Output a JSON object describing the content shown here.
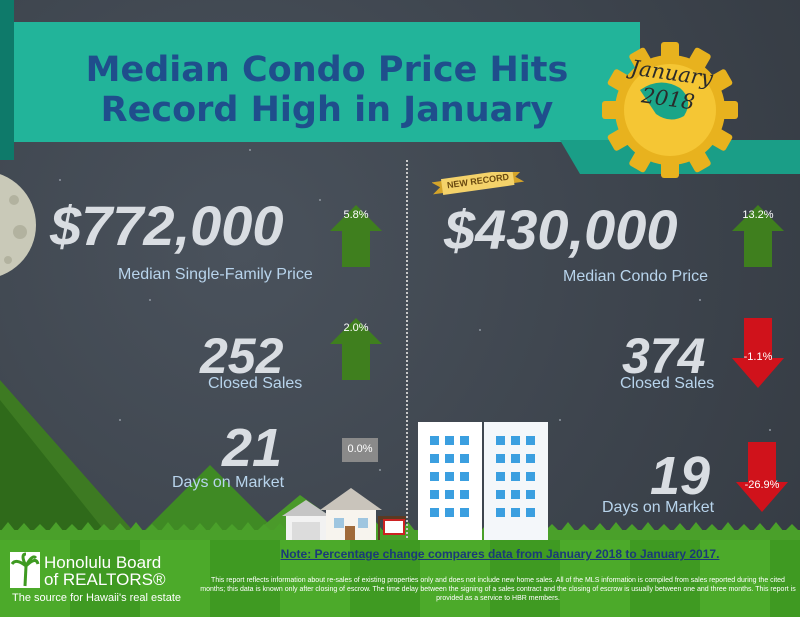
{
  "header": {
    "title_line1": "Median Condo Price Hits",
    "title_line2": "Record High in January",
    "seal_month": "January",
    "seal_year": "2018"
  },
  "badge": {
    "label": "NEW RECORD"
  },
  "single_family": {
    "price": {
      "value": "$772,000",
      "label": "Median Single-Family Price",
      "change": "5.8%",
      "direction": "up"
    },
    "closed_sales": {
      "value": "252",
      "label": "Closed Sales",
      "change": "2.0%",
      "direction": "up"
    },
    "days_on_market": {
      "value": "21",
      "label": "Days on Market",
      "change": "0.0%",
      "direction": "flat"
    }
  },
  "condo": {
    "price": {
      "value": "$430,000",
      "label": "Median Condo Price",
      "change": "13.2%",
      "direction": "up"
    },
    "closed_sales": {
      "value": "374",
      "label": "Closed Sales",
      "change": "-1.1%",
      "direction": "down"
    },
    "days_on_market": {
      "value": "19",
      "label": "Days on Market",
      "change": "-26.9%",
      "direction": "down"
    }
  },
  "footer": {
    "logo_line1": "Honolulu Board",
    "logo_line2": "of REALTORS®",
    "logo_tagline": "The source for Hawaii's real estate",
    "note": "Note: Percentage change compares data from January 2018 to January 2017.",
    "disclaimer": "This report reflects information about re-sales of existing properties only and does not include new home sales. All of the MLS information is compiled from sales reported during the cited months; this data is known only after closing of escrow. The time delay between the signing of a sales contract and the closing of escrow is usually between one and three months. This report is provided as a service to HBR members."
  },
  "colors": {
    "up_arrow": "#3f7f1e",
    "down_arrow": "#d0121b",
    "flat_box": "#8a8a8a",
    "banner": "#22b49a",
    "title": "#1f4e8c",
    "label": "#b8d4ec",
    "footer": "#4caa2a"
  }
}
